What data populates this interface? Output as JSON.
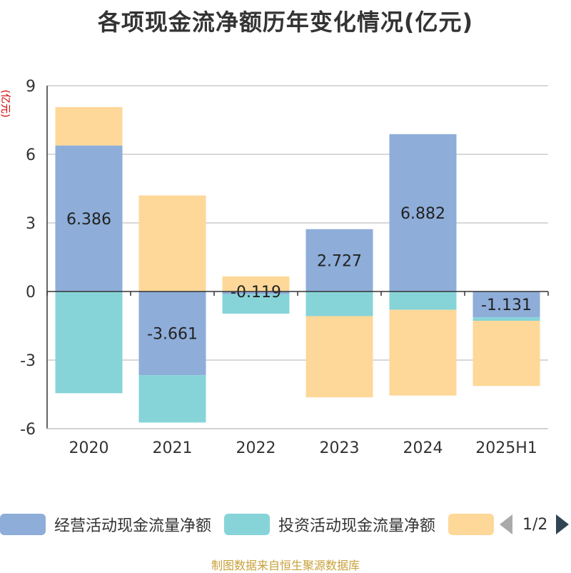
{
  "title": "各项现金流净额历年变化情况(亿元)",
  "unit_label": "(亿元)",
  "legend_pager": {
    "text": "1/2"
  },
  "footer": "制图数据来自恒生聚源数据库",
  "colors": {
    "operating": "#8eadd9",
    "investing": "#86d4d8",
    "financing": "#fed899",
    "axis": "#333333",
    "grid": "#cccccc"
  },
  "chart_data": {
    "type": "bar",
    "stacked": true,
    "categories": [
      "2020",
      "2021",
      "2022",
      "2023",
      "2024",
      "2025H1"
    ],
    "ylim": [
      -6,
      9
    ],
    "yticks": [
      -6,
      -3,
      0,
      3,
      6,
      9
    ],
    "grid": true,
    "legend_position": "bottom",
    "series": [
      {
        "name": "经营活动现金流量净额",
        "color": "#8eadd9",
        "values": [
          6.386,
          -3.661,
          -0.119,
          2.727,
          6.882,
          -1.131
        ],
        "labels": [
          "6.386",
          "-3.661",
          "-0.119",
          "2.727",
          "6.882",
          "-1.131"
        ]
      },
      {
        "name": "投资活动现金流量净额",
        "color": "#86d4d8",
        "values": [
          -4.45,
          -2.07,
          -0.85,
          -1.08,
          -0.8,
          -0.15
        ]
      },
      {
        "name": "",
        "color": "#fed899",
        "values": [
          1.68,
          4.2,
          0.66,
          -3.55,
          -3.75,
          -2.85
        ]
      }
    ]
  }
}
